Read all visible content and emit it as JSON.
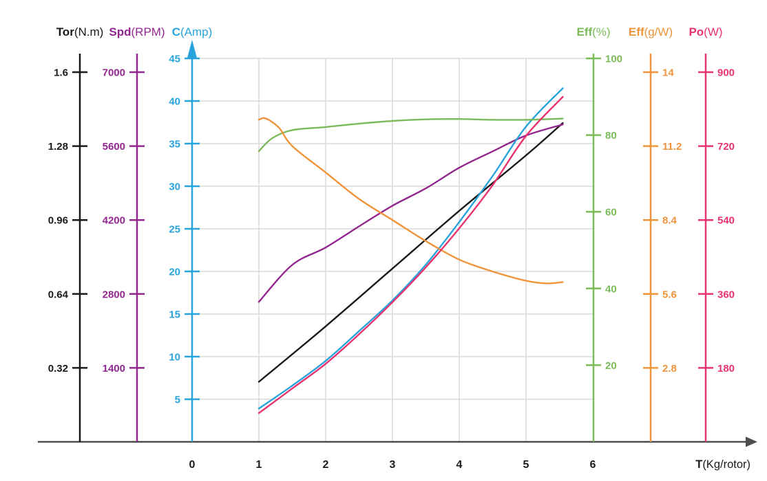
{
  "page": {
    "background": "#ffffff",
    "grid_color": "#d9d9d9",
    "x_axis_color": "#4d4d4d"
  },
  "chart_data": {
    "type": "line",
    "title": "",
    "grid": "on",
    "x_axis": {
      "title_bold": "T",
      "title_rest": "(Kg/rotor)",
      "ticks": [
        "0",
        "1",
        "2",
        "3",
        "4",
        "5",
        "6"
      ],
      "range": [
        0,
        6
      ],
      "color": "#4d4d4d"
    },
    "y_axes": [
      {
        "id": "tor",
        "title_bold": "Tor",
        "title_rest": "(N.m)",
        "color": "#1a1a1a",
        "side": "left",
        "ticks": [
          "0.32",
          "0.64",
          "0.96",
          "1.28",
          "1.6"
        ],
        "range": [
          0,
          1.6
        ]
      },
      {
        "id": "spd",
        "title_bold": "Spd",
        "title_rest": "(RPM)",
        "color": "#92278f",
        "side": "left",
        "ticks": [
          "1400",
          "2800",
          "4200",
          "5600",
          "7000"
        ],
        "range": [
          0,
          7000
        ]
      },
      {
        "id": "c",
        "title_bold": "C",
        "title_rest": "(Amp)",
        "color": "#29a3dc",
        "side": "left",
        "ticks": [
          "5",
          "10",
          "15",
          "20",
          "25",
          "30",
          "35",
          "40",
          "45"
        ],
        "range": [
          0,
          45
        ],
        "arrow": true,
        "grid": true
      },
      {
        "id": "eff_pct",
        "title_bold": "Eff",
        "title_rest": "(%)",
        "color": "#7cbb5a",
        "side": "right",
        "ticks": [
          "20",
          "40",
          "60",
          "80",
          "100"
        ],
        "range": [
          0,
          100
        ]
      },
      {
        "id": "eff_gw",
        "title_bold": "Eff",
        "title_rest": "(g/W)",
        "color": "#f0943b",
        "side": "right",
        "ticks": [
          "2.8",
          "5.6",
          "8.4",
          "11.2",
          "14"
        ],
        "range": [
          0,
          14
        ]
      },
      {
        "id": "po",
        "title_bold": "Po",
        "title_rest": "(W)",
        "color": "#e8336e",
        "side": "right",
        "ticks": [
          "180",
          "360",
          "540",
          "720",
          "900"
        ],
        "range": [
          0,
          900
        ]
      }
    ],
    "series": [
      {
        "name": "torque",
        "axis": "tor",
        "color": "#1a1a1a",
        "x": [
          1,
          2,
          3,
          4,
          5,
          5.55
        ],
        "y": [
          0.26,
          0.5,
          0.75,
          1.0,
          1.24,
          1.38
        ]
      },
      {
        "name": "speed",
        "axis": "spd",
        "color": "#92278f",
        "x": [
          1,
          1.5,
          2,
          2.5,
          3,
          3.5,
          4,
          4.5,
          5,
          5.55
        ],
        "y": [
          2650,
          3350,
          3680,
          4080,
          4470,
          4800,
          5190,
          5500,
          5800,
          6010
        ]
      },
      {
        "name": "current",
        "axis": "c",
        "color": "#29a3dc",
        "x": [
          1,
          1.5,
          2,
          2.5,
          3,
          3.5,
          4,
          4.5,
          5,
          5.55
        ],
        "y": [
          3.9,
          6.6,
          9.5,
          13.0,
          16.6,
          20.8,
          25.8,
          31.2,
          37.0,
          41.5
        ]
      },
      {
        "name": "efficiency-pct",
        "axis": "eff_pct",
        "color": "#7cbb5a",
        "x": [
          1,
          1.2,
          1.5,
          2,
          2.5,
          3,
          3.5,
          4,
          4.5,
          5,
          5.55
        ],
        "y": [
          75.8,
          79.2,
          81.3,
          82.1,
          83.0,
          83.7,
          84.1,
          84.2,
          84.0,
          84.0,
          84.3
        ]
      },
      {
        "name": "efficiency-gw",
        "axis": "eff_gw",
        "color": "#f0943b",
        "x": [
          1,
          1.1,
          1.3,
          1.5,
          2,
          2.5,
          3,
          3.5,
          4,
          4.5,
          5,
          5.3,
          5.55
        ],
        "y": [
          12.2,
          12.25,
          11.9,
          11.2,
          10.2,
          9.2,
          8.4,
          7.6,
          6.9,
          6.45,
          6.1,
          6.0,
          6.05
        ]
      },
      {
        "name": "power",
        "axis": "po",
        "color": "#e8336e",
        "x": [
          1,
          1.5,
          2,
          2.5,
          3,
          3.5,
          4,
          4.5,
          5,
          5.55
        ],
        "y": [
          70,
          130,
          190,
          262,
          340,
          425,
          520,
          625,
          745,
          840
        ]
      }
    ]
  }
}
